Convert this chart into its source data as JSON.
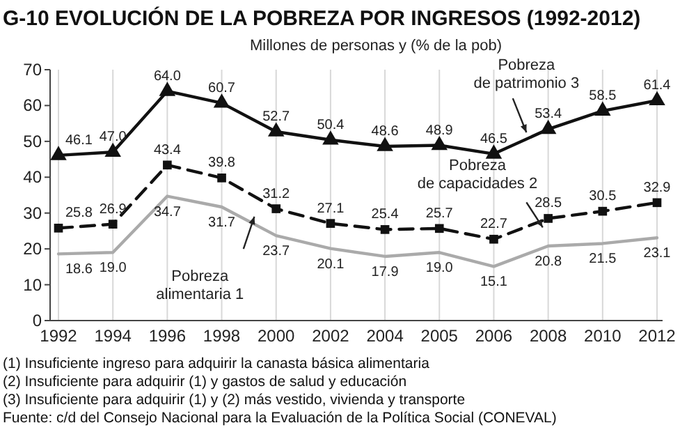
{
  "chart_data": {
    "type": "line",
    "title": "G-10 EVOLUCIÓN DE LA POBREZA POR INGRESOS (1992-2012)",
    "subtitle": "Millones de personas y (% de la pob)",
    "categories": [
      "1992",
      "1994",
      "1996",
      "1998",
      "2000",
      "2002",
      "2004",
      "2005",
      "2006",
      "2008",
      "2010",
      "2012"
    ],
    "series": [
      {
        "name": "Pobreza de patrimonio 3",
        "color": "#111111",
        "marker": "triangle",
        "line_style": "solid",
        "values": [
          46.1,
          47.0,
          64.0,
          60.7,
          52.7,
          50.4,
          48.6,
          48.9,
          46.5,
          53.4,
          58.5,
          61.4
        ],
        "value_labels": [
          "46.1",
          "47.0",
          "64.0",
          "60.7",
          "52.7",
          "50.4",
          "48.6",
          "48.9",
          "46.5",
          "53.4",
          "58.5",
          "61.4"
        ]
      },
      {
        "name": "Pobreza de capacidades 2",
        "color": "#111111",
        "marker": "square",
        "line_style": "dashed",
        "values": [
          25.8,
          26.9,
          43.4,
          39.8,
          31.2,
          27.1,
          25.4,
          25.7,
          22.7,
          28.5,
          30.5,
          32.9
        ],
        "value_labels": [
          "25.8",
          "26.9",
          "43.4",
          "39.8",
          "31.2",
          "27.1",
          "25.4",
          "25.7",
          "22.7",
          "28.5",
          "30.5",
          "32.9"
        ]
      },
      {
        "name": "Pobreza alimentaria 1",
        "color": "#aaaaaa",
        "marker": "none",
        "line_style": "solid",
        "values": [
          18.6,
          19.0,
          34.7,
          31.7,
          23.7,
          20.1,
          17.9,
          19.0,
          15.1,
          20.8,
          21.5,
          23.1
        ],
        "value_labels": [
          "18.6",
          "19.0",
          "34.7",
          "31.7",
          "23.7",
          "20.1",
          "17.9",
          "19.0",
          "15.1",
          "20.8",
          "21.5",
          "23.1"
        ]
      }
    ],
    "ylim": [
      0,
      70
    ],
    "yticks": [
      0,
      10,
      20,
      30,
      40,
      50,
      60,
      70
    ],
    "grid": "x",
    "annotations": [
      "(1) Insuficiente ingreso para adquirir la canasta básica alimentaria",
      "(2) Insuficiente para adquirir (1) y gastos de salud y educación",
      "(3) Insuficiente para adquirir (1) y (2) más vestido, vivienda y transporte",
      "Fuente: c/d del Consejo Nacional para la Evaluación de la Política Social (CONEVAL)"
    ]
  }
}
